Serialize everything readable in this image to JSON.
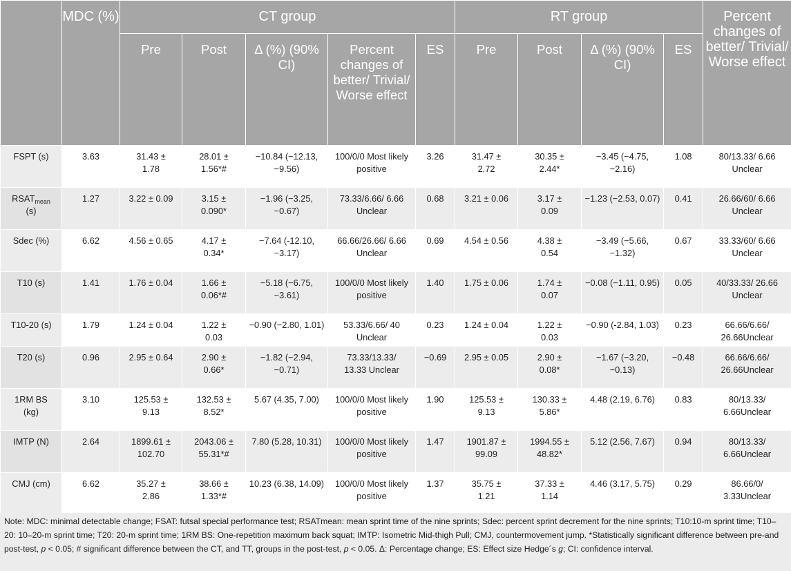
{
  "header": {
    "top": {
      "mdc": "MDC (%)",
      "ct_group": "CT group",
      "rt_group": "RT group"
    },
    "sub": {
      "pre": "Pre",
      "post": "Post",
      "delta": "Δ (%) (90% CI)",
      "percent_changes": "Percent changes of better/ Trivial/ Worse effect",
      "es": "ES"
    }
  },
  "rows": [
    {
      "label": "FSPT (s)",
      "mdc": "3.63",
      "ct_pre": "31.43 ± 1.78",
      "ct_post": "28.01 ± 1.56*#",
      "ct_delta": "−10.84 (−12.13, −9.56)",
      "ct_pc": "100/0/0 Most likely positive",
      "ct_es": "3.26",
      "rt_pre": "31.47 ± 2.72",
      "rt_post": "30.35 ± 2.44*",
      "rt_delta": "−3.45 (−4.75, −2.16)",
      "rt_es": "1.08",
      "rt_pc": "80/13.33/ 6.66 Unclear"
    },
    {
      "label_main": "RSAT",
      "label_sub": "mean",
      "label_tail": "(s)",
      "mdc": "1.27",
      "ct_pre": "3.22 ± 0.09",
      "ct_post": "3.15 ± 0.090*",
      "ct_delta": "−1.96 (−3.25, −0.67)",
      "ct_pc": "73.33/6.66/ 6.66 Unclear",
      "ct_es": "0.68",
      "rt_pre": "3.21 ± 0.06",
      "rt_post": "3.17 ± 0.09",
      "rt_delta": "−1.23 (−2.53, 0.07)",
      "rt_es": "0.41",
      "rt_pc": "26.66/60/ 6.66 Unclear"
    },
    {
      "label": "Sdec (%)",
      "mdc": "6.62",
      "ct_pre": "4.56 ± 0.65",
      "ct_post": "4.17 ± 0.34*",
      "ct_delta": "−7.64 (-12.10, −3.17)",
      "ct_pc": "66.66/26.66/ 6.66 Unclear",
      "ct_es": "0.69",
      "rt_pre": "4.54 ± 0.56",
      "rt_post": "4.38 ± 0.54",
      "rt_delta": "−3.49 (−5.66, −1.32)",
      "rt_es": "0.67",
      "rt_pc": "33.33/60/ 6.66 Unclear"
    },
    {
      "label": "T10 (s)",
      "mdc": "1.41",
      "ct_pre": "1.76 ± 0.04",
      "ct_post": "1.66 ± 0.06*#",
      "ct_delta": "−5.18 (−6.75, −3.61)",
      "ct_pc": "100/0/0 Most likely positive",
      "ct_es": "1.40",
      "rt_pre": "1.75 ± 0.06",
      "rt_post": "1.74 ± 0.07",
      "rt_delta": "−0.08 (−1.11, 0.95)",
      "rt_es": "0.05",
      "rt_pc": "40/33.33/ 26.66 Unclear"
    },
    {
      "label": "T10-20 (s)",
      "mdc": "1.79",
      "ct_pre": "1.24 ± 0.04",
      "ct_post": "1.22 ± 0.03",
      "ct_delta": "−0.90 (−2.80, 1.01)",
      "ct_pc": "53.33/6.66/ 40 Unclear",
      "ct_es": "0.23",
      "rt_pre": "1.24 ± 0.04",
      "rt_post": "1.22 ± 0.03",
      "rt_delta": "−0.90 (-2.84, 1.03)",
      "rt_es": "0.23",
      "rt_pc": "66.66/6.66/ 26.66Unclear"
    },
    {
      "label": "T20 (s)",
      "mdc": "0.96",
      "ct_pre": "2.95 ± 0.64",
      "ct_post": "2.90 ± 0.66*",
      "ct_delta": "−1.82 (−2.94, −0.71)",
      "ct_pc": "73.33/13.33/ 13.33 Unclear",
      "ct_es": "−0.69",
      "rt_pre": "2.95 ± 0.05",
      "rt_post": "2.90 ± 0.08*",
      "rt_delta": "−1.67 (−3.20, −0.13)",
      "rt_es": "−0.48",
      "rt_pc": "66.66/6.66/ 26.66Unclear"
    },
    {
      "label": "1RM BS (kg)",
      "mdc": "3.10",
      "ct_pre": "125.53 ± 9.13",
      "ct_post": "132.53 ± 8.52*",
      "ct_delta": "5.67 (4.35, 7.00)",
      "ct_pc": "100/0/0 Most likely positive",
      "ct_es": "1.90",
      "rt_pre": "125.53 ± 9.13",
      "rt_post": "130.33 ± 5.86*",
      "rt_delta": "4.48 (2.19, 6.76)",
      "rt_es": "0.83",
      "rt_pc": "80/13.33/ 6.66Unclear"
    },
    {
      "label": "IMTP (N)",
      "mdc": "2.64",
      "ct_pre": "1899.61 ± 102.70",
      "ct_post": "2043.06 ± 55.31*#",
      "ct_delta": "7.80 (5.28, 10.31)",
      "ct_pc": "100/0/0 Most likely positive",
      "ct_es": "1.47",
      "rt_pre": "1901.87 ± 99.09",
      "rt_post": "1994.55 ± 48.82*",
      "rt_delta": "5.12 (2.56, 7.67)",
      "rt_es": "0.94",
      "rt_pc": "80/13.33/ 6.66Unclear"
    },
    {
      "label": "CMJ (cm)",
      "mdc": "6.62",
      "ct_pre": "35.27 ± 2.86",
      "ct_post": "38.66 ± 1.33*#",
      "ct_delta": "10.23 (6.38, 14.09)",
      "ct_pc": "100/0/0 Most likely positive",
      "ct_es": "1.37",
      "rt_pre": "35.75 ± 1.21",
      "rt_post": "37.33 ± 1.14",
      "rt_delta": "4.46 (3.17, 5.75)",
      "rt_es": "0.29",
      "rt_pc": "86.66/0/ 3.33Unclear"
    }
  ],
  "note": {
    "part1": "Note: MDC: minimal detectable change; FSAT: futsal special performance test; RSATmean: mean sprint time of the nine sprints; Sdec: percent sprint decrement for the nine sprints; T10:10-m sprint time; T10–20: 10–20-m sprint time; T20: 20-m sprint time; 1RM BS: One-repetition maximum back squat; IMTP: Isometric Mid-thigh Pull; CMJ, countermovement jump. *Statistically significant difference between pre-and post-test, ",
    "p1": "p",
    "part2": " < 0.05; # significant difference between the CT, and TT, groups in the post-test, ",
    "p2": "p",
    "part3": " < 0.05. Δ: Percentage change; ES: Effect size Hedge´s ",
    "g": "g",
    "part4": "; CI: confidence interval."
  }
}
